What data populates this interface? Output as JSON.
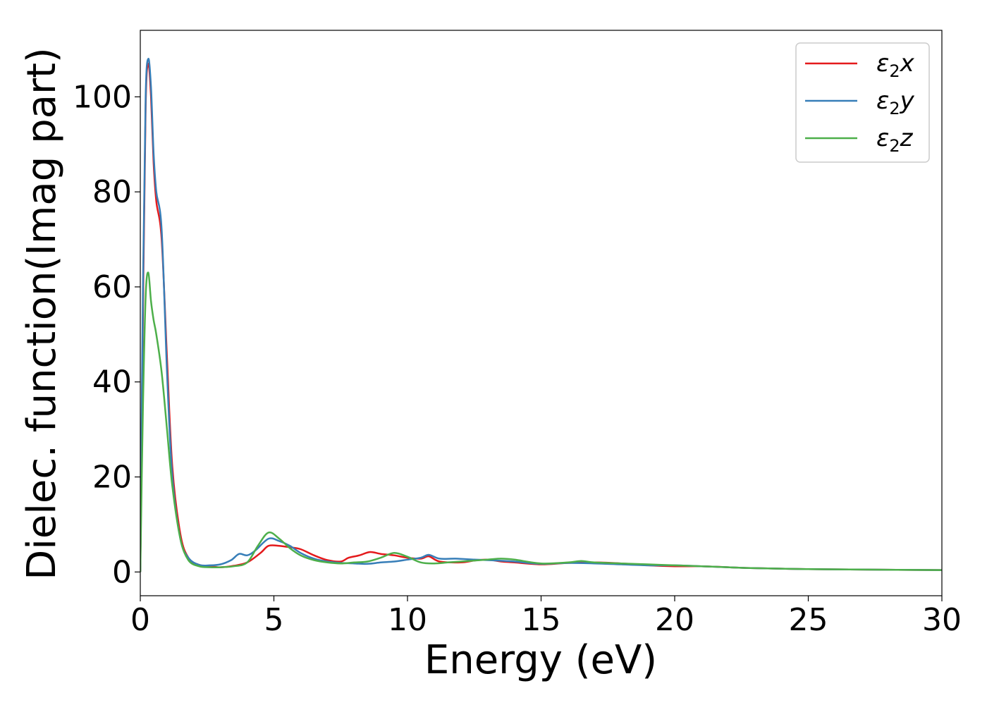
{
  "chart_data": {
    "type": "line",
    "title": "",
    "xlabel": "Energy (eV)",
    "ylabel": "Dielec. function(Imag part)",
    "xlim": [
      0,
      30
    ],
    "ylim": [
      -5,
      114
    ],
    "xticks": [
      0,
      5,
      10,
      15,
      20,
      25,
      30
    ],
    "yticks": [
      0,
      20,
      40,
      60,
      80,
      100
    ],
    "grid": false,
    "legend_position": "top-right",
    "series": [
      {
        "name": "ε₂x",
        "legend_base": "ε",
        "legend_sub": "2",
        "legend_suffix": "x",
        "color": "#e41a1c",
        "x": [
          0,
          0.1,
          0.2,
          0.3,
          0.4,
          0.5,
          0.6,
          0.8,
          1.0,
          1.2,
          1.5,
          1.8,
          2.2,
          2.6,
          3.0,
          3.5,
          4.0,
          4.5,
          4.8,
          5.2,
          5.6,
          6.0,
          6.5,
          7.0,
          7.5,
          7.8,
          8.2,
          8.6,
          9.0,
          9.5,
          10.0,
          10.5,
          10.8,
          11.2,
          12.0,
          12.5,
          13.0,
          13.5,
          14.0,
          15.0,
          16.0,
          17.0,
          18.0,
          19.0,
          20.0,
          21.0,
          22.0,
          23.0,
          25.0,
          27.0,
          30.0
        ],
        "y": [
          0,
          55,
          98,
          107,
          100,
          86,
          78,
          70,
          45,
          22,
          8,
          3,
          1.5,
          1.2,
          1.0,
          1.3,
          2.0,
          4.0,
          5.5,
          5.5,
          5.2,
          4.8,
          3.5,
          2.5,
          2.2,
          3.0,
          3.5,
          4.2,
          3.8,
          3.5,
          3.0,
          2.8,
          3.3,
          2.2,
          2.0,
          2.4,
          2.6,
          2.2,
          2.0,
          1.6,
          1.9,
          2.0,
          1.8,
          1.4,
          1.2,
          1.2,
          1.0,
          0.8,
          0.6,
          0.5,
          0.4
        ]
      },
      {
        "name": "ε₂y",
        "legend_base": "ε",
        "legend_sub": "2",
        "legend_suffix": "y",
        "color": "#377eb8",
        "x": [
          0,
          0.1,
          0.2,
          0.3,
          0.4,
          0.5,
          0.6,
          0.8,
          1.0,
          1.2,
          1.5,
          1.8,
          2.2,
          2.6,
          3.0,
          3.4,
          3.7,
          4.0,
          4.3,
          4.8,
          5.2,
          5.6,
          6.0,
          6.5,
          7.0,
          7.5,
          8.0,
          8.5,
          9.0,
          9.5,
          10.0,
          10.5,
          10.8,
          11.2,
          11.8,
          12.5,
          13.0,
          14.0,
          15.0,
          16.0,
          17.0,
          18.0,
          19.0,
          20.0,
          21.0,
          22.0,
          23.0,
          25.0,
          27.0,
          30.0
        ],
        "y": [
          0,
          60,
          100,
          108,
          102,
          88,
          80,
          72,
          42,
          20,
          7,
          3,
          1.5,
          1.4,
          1.6,
          2.5,
          3.8,
          3.5,
          4.5,
          7.0,
          6.5,
          5.5,
          4.0,
          2.8,
          2.2,
          1.9,
          1.8,
          1.7,
          2.0,
          2.2,
          2.6,
          3.0,
          3.6,
          2.8,
          2.8,
          2.6,
          2.5,
          2.2,
          1.7,
          1.9,
          1.8,
          1.6,
          1.4,
          1.4,
          1.2,
          1.0,
          0.8,
          0.6,
          0.5,
          0.4
        ]
      },
      {
        "name": "ε₂z",
        "legend_base": "ε",
        "legend_sub": "2",
        "legend_suffix": "z",
        "color": "#4daf4a",
        "x": [
          0,
          0.1,
          0.2,
          0.3,
          0.4,
          0.5,
          0.6,
          0.8,
          1.0,
          1.2,
          1.5,
          1.8,
          2.2,
          2.6,
          3.0,
          3.5,
          4.0,
          4.4,
          4.8,
          5.2,
          5.6,
          6.0,
          6.5,
          7.0,
          7.5,
          8.0,
          8.5,
          9.0,
          9.5,
          10.0,
          10.5,
          11.0,
          11.5,
          12.0,
          13.0,
          13.5,
          14.0,
          15.0,
          16.0,
          16.5,
          17.0,
          18.0,
          19.0,
          20.0,
          21.0,
          22.0,
          23.0,
          25.0,
          27.0,
          30.0
        ],
        "y": [
          0,
          35,
          58,
          63,
          57,
          53,
          50,
          42,
          30,
          18,
          7,
          2.5,
          1.2,
          1.0,
          1.0,
          1.2,
          2.0,
          5.5,
          8.3,
          7.0,
          5.0,
          3.5,
          2.5,
          2.0,
          1.8,
          2.0,
          2.2,
          3.0,
          4.0,
          3.2,
          2.0,
          1.8,
          2.0,
          2.2,
          2.6,
          2.8,
          2.6,
          1.8,
          2.0,
          2.3,
          2.0,
          1.8,
          1.6,
          1.4,
          1.2,
          1.0,
          0.8,
          0.6,
          0.5,
          0.4
        ]
      }
    ]
  }
}
